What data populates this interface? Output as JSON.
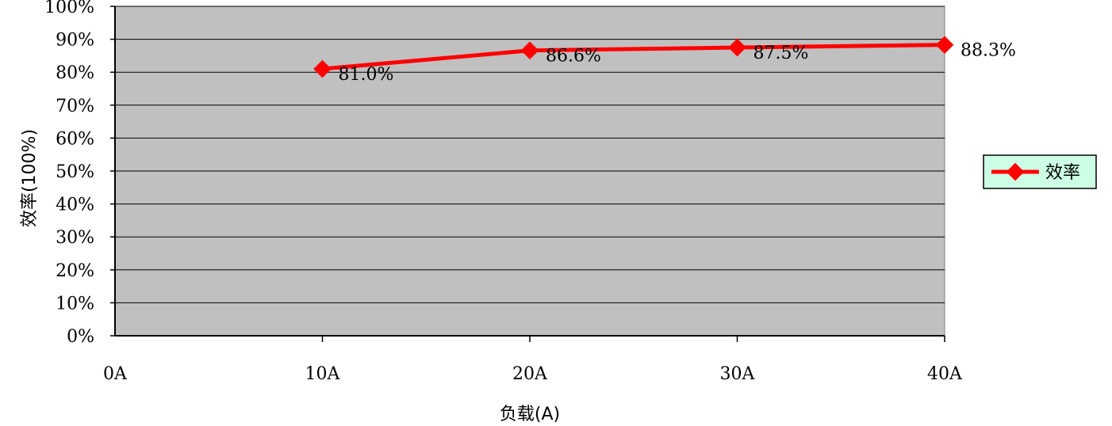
{
  "chart_data": {
    "type": "line",
    "title": "",
    "xlabel": "负载(A)",
    "ylabel": "效率(100%)",
    "categories": [
      "0A",
      "10A",
      "20A",
      "30A",
      "40A"
    ],
    "x": [
      0,
      10,
      20,
      30,
      40
    ],
    "xlim": [
      0,
      40
    ],
    "ylim": [
      0,
      100
    ],
    "y_ticks": [
      0,
      10,
      20,
      30,
      40,
      50,
      60,
      70,
      80,
      90,
      100
    ],
    "y_tick_labels": [
      "0%",
      "10%",
      "20%",
      "30%",
      "40%",
      "50%",
      "60%",
      "70%",
      "80%",
      "90%",
      "100%"
    ],
    "grid": true,
    "legend_position": "right",
    "series": [
      {
        "name": "效率",
        "color": "#ff0000",
        "x": [
          10,
          20,
          30,
          40
        ],
        "values": [
          81.0,
          86.6,
          87.5,
          88.3
        ],
        "labels": [
          "81.0%",
          "86.6%",
          "87.5%",
          "88.3%"
        ]
      }
    ],
    "colors": {
      "plot_background": "#c0c0c0",
      "legend_background": "#ccffe6",
      "line": "#ff0000",
      "gridline": "#000000"
    }
  }
}
